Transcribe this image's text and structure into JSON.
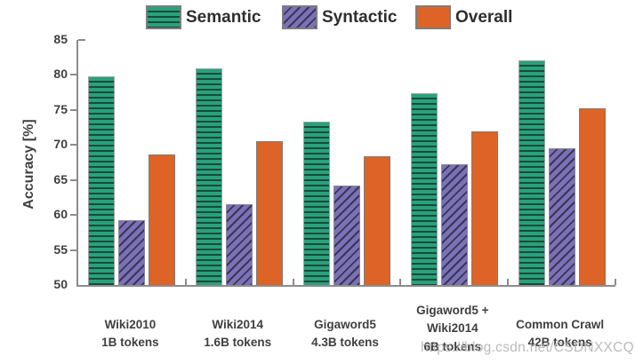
{
  "watermark": {
    "text": "https://blog.csdn.net/CSDNXXCQ",
    "color": "#b3b3b3"
  },
  "style_colors": {
    "axis": "#8c8c8c",
    "text": "#3f3f3f",
    "background": "#ffffff"
  },
  "chart_data": {
    "type": "bar",
    "title": "",
    "xlabel": "",
    "ylabel": "Accuracy [%]",
    "ylim": [
      50,
      85
    ],
    "yticks": [
      50,
      55,
      60,
      65,
      70,
      75,
      80,
      85
    ],
    "grid": false,
    "legend_position": "top",
    "categories": [
      {
        "lines": [
          "Wiki2010",
          "1B tokens"
        ]
      },
      {
        "lines": [
          "Wiki2014",
          "1.6B tokens"
        ]
      },
      {
        "lines": [
          "Gigaword5",
          "4.3B tokens"
        ]
      },
      {
        "lines": [
          "Gigaword5 +",
          "Wiki2014",
          "6B tokens"
        ]
      },
      {
        "lines": [
          "Common Crawl",
          "42B tokens"
        ]
      }
    ],
    "series": [
      {
        "name": "Semantic",
        "pattern": "horizontal-stripes",
        "fill": "#27a27c",
        "stripe": "#1b4a39",
        "border": "#a3a3a3",
        "values": [
          79.8,
          81.0,
          73.3,
          77.4,
          82.1
        ]
      },
      {
        "name": "Syntactic",
        "pattern": "diagonal-stripes",
        "fill": "#7b71b7",
        "stripe": "#3a3554",
        "border": "#8a879b",
        "values": [
          59.3,
          61.6,
          64.2,
          67.3,
          69.5
        ]
      },
      {
        "name": "Overall",
        "pattern": "solid",
        "fill": "#dd6426",
        "stripe": null,
        "border": "#7f7a76",
        "values": [
          68.7,
          70.5,
          68.4,
          71.9,
          75.2
        ]
      }
    ]
  }
}
